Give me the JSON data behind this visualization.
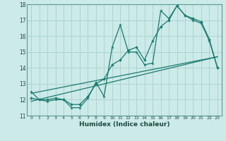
{
  "title": "",
  "xlabel": "Humidex (Indice chaleur)",
  "bg_color": "#cceae8",
  "grid_color": "#aad4d0",
  "line_color": "#1a7a6e",
  "x_values": [
    0,
    1,
    2,
    3,
    4,
    5,
    6,
    7,
    8,
    9,
    10,
    11,
    12,
    13,
    14,
    15,
    16,
    17,
    18,
    19,
    20,
    21,
    22,
    23
  ],
  "series1": [
    12.5,
    12.0,
    11.9,
    12.0,
    12.0,
    11.5,
    11.5,
    12.1,
    13.1,
    12.2,
    15.3,
    16.7,
    15.0,
    15.0,
    14.2,
    14.3,
    17.6,
    17.1,
    17.9,
    17.3,
    17.0,
    16.8,
    15.7,
    14.0
  ],
  "series2": [
    12.1,
    12.0,
    12.0,
    12.1,
    12.0,
    11.7,
    11.7,
    12.2,
    13.0,
    13.3,
    14.2,
    14.5,
    15.1,
    15.3,
    14.5,
    15.7,
    16.6,
    17.0,
    17.9,
    17.3,
    17.1,
    16.9,
    15.8,
    14.0
  ],
  "trend1_x": [
    0,
    23
  ],
  "trend1_y": [
    11.9,
    14.7
  ],
  "trend2_x": [
    0,
    23
  ],
  "trend2_y": [
    12.4,
    14.7
  ],
  "ylim": [
    11,
    18
  ],
  "xlim": [
    -0.5,
    23.5
  ],
  "yticks": [
    11,
    12,
    13,
    14,
    15,
    16,
    17,
    18
  ],
  "xticks": [
    0,
    1,
    2,
    3,
    4,
    5,
    6,
    7,
    8,
    9,
    10,
    11,
    12,
    13,
    14,
    15,
    16,
    17,
    18,
    19,
    20,
    21,
    22,
    23
  ]
}
